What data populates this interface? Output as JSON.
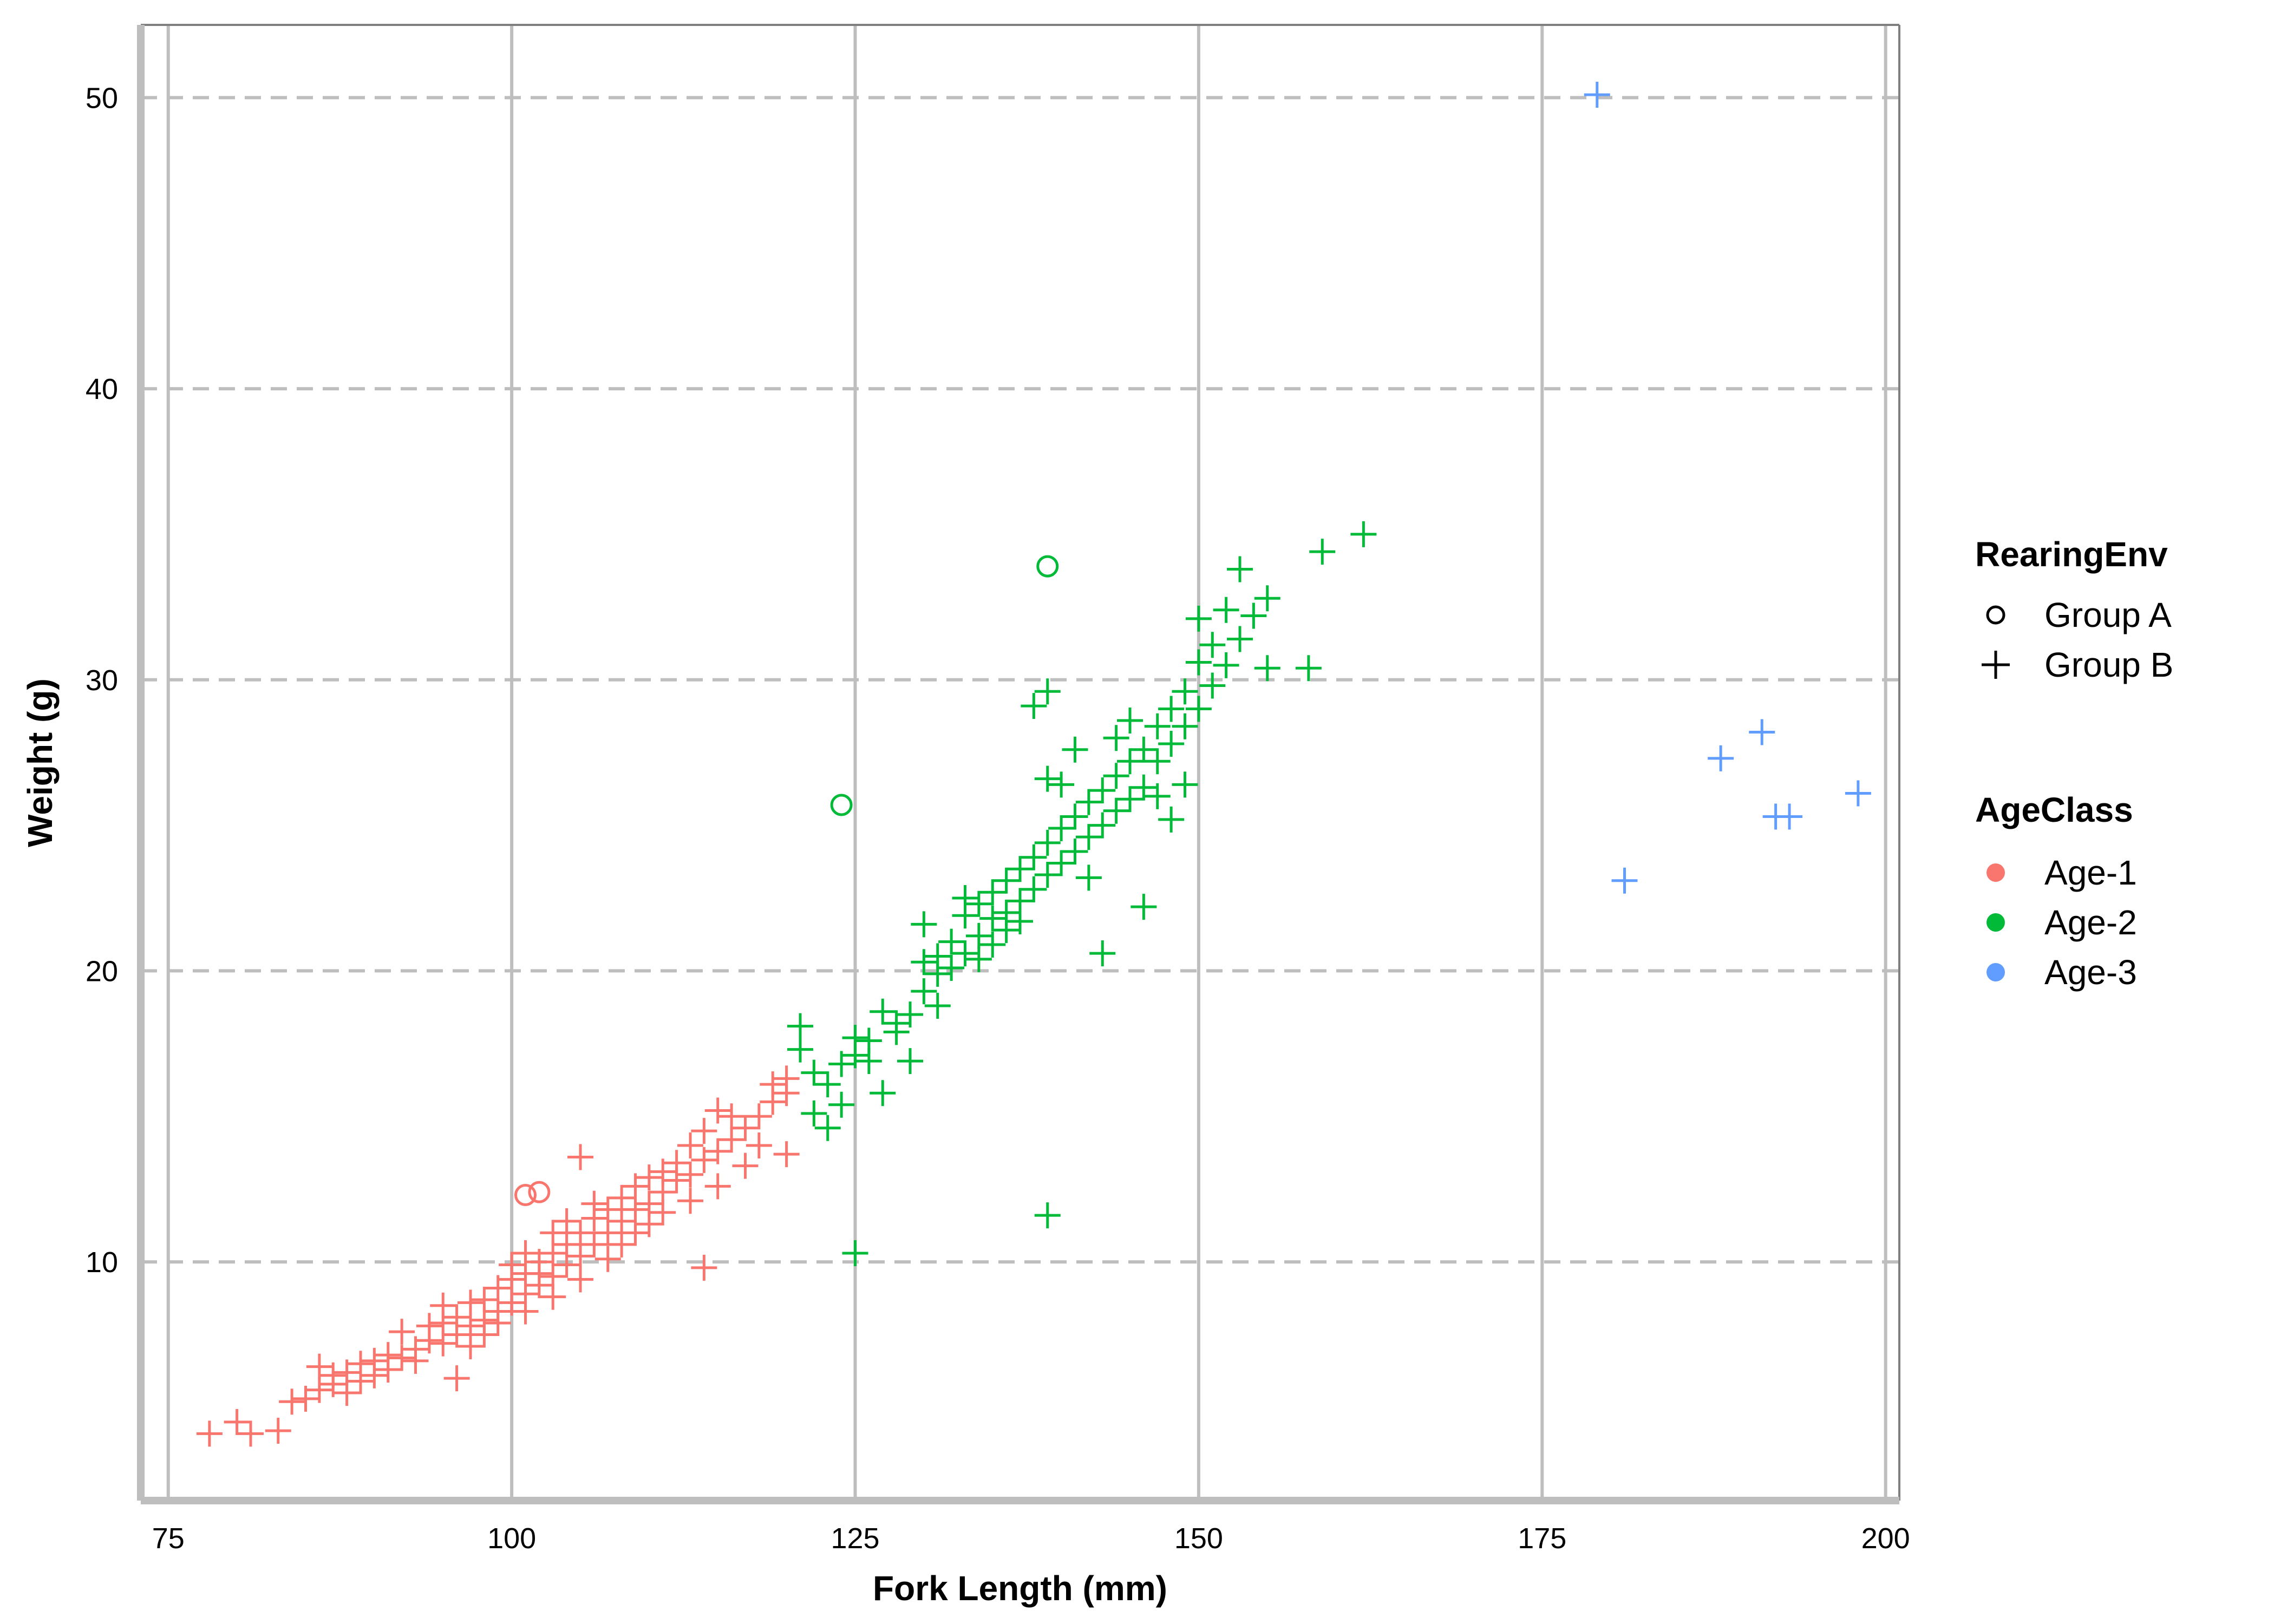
{
  "chart_data": {
    "type": "scatter",
    "title": "",
    "xlabel": "Fork Length (mm)",
    "ylabel": "Weight (g)",
    "xlim": [
      73,
      201
    ],
    "ylim": [
      1.8,
      52.5
    ],
    "x_ticks": [
      75,
      100,
      125,
      150,
      175,
      200
    ],
    "y_ticks": [
      10,
      20,
      30,
      40,
      50
    ],
    "grid": {
      "x_major": "solid",
      "y_major": "dashed"
    },
    "colors": {
      "Age-1": "#F8766D",
      "Age-2": "#00BA38",
      "Age-3": "#619CFF",
      "grid": "#bebebe",
      "border": "#7f7f7f"
    },
    "legends": [
      {
        "title": "RearingEnv",
        "position": "right",
        "entries": [
          {
            "label": "Group A",
            "shape": "circle"
          },
          {
            "label": "Group B",
            "shape": "plus"
          }
        ]
      },
      {
        "title": "AgeClass",
        "position": "right",
        "entries": [
          {
            "label": "Age-1",
            "color": "#F8766D"
          },
          {
            "label": "Age-2",
            "color": "#00BA38"
          },
          {
            "label": "Age-3",
            "color": "#619CFF"
          }
        ]
      }
    ],
    "series": [
      {
        "age": "Age-1",
        "rearing": "Group B",
        "points": [
          [
            78,
            4.1
          ],
          [
            80,
            4.5
          ],
          [
            81,
            4.1
          ],
          [
            83,
            4.2
          ],
          [
            84,
            5.2
          ],
          [
            85,
            5.3
          ],
          [
            86,
            5.6
          ],
          [
            86,
            6.4
          ],
          [
            87,
            5.8
          ],
          [
            87,
            6.1
          ],
          [
            88,
            5.5
          ],
          [
            88,
            6.2
          ],
          [
            89,
            6.5
          ],
          [
            89,
            5.9
          ],
          [
            90,
            6.6
          ],
          [
            90,
            6.1
          ],
          [
            91,
            6.8
          ],
          [
            91,
            6.3
          ],
          [
            92,
            6.7
          ],
          [
            92,
            7.6
          ],
          [
            93,
            7.0
          ],
          [
            93,
            6.6
          ],
          [
            94,
            7.3
          ],
          [
            94,
            7.8
          ],
          [
            95,
            7.2
          ],
          [
            95,
            7.9
          ],
          [
            95,
            8.5
          ],
          [
            96,
            7.5
          ],
          [
            96,
            6.0
          ],
          [
            96,
            8.1
          ],
          [
            97,
            7.8
          ],
          [
            97,
            8.6
          ],
          [
            97,
            7.1
          ],
          [
            98,
            8.0
          ],
          [
            98,
            8.7
          ],
          [
            98,
            7.5
          ],
          [
            99,
            8.3
          ],
          [
            99,
            9.1
          ],
          [
            99,
            7.9
          ],
          [
            100,
            8.6
          ],
          [
            100,
            9.4
          ],
          [
            100,
            9.9
          ],
          [
            101,
            8.9
          ],
          [
            101,
            9.6
          ],
          [
            101,
            10.3
          ],
          [
            101,
            8.3
          ],
          [
            102,
            9.2
          ],
          [
            102,
            10.0
          ],
          [
            102,
            9.6
          ],
          [
            103,
            9.5
          ],
          [
            103,
            10.3
          ],
          [
            103,
            11.0
          ],
          [
            103,
            8.8
          ],
          [
            104,
            9.9
          ],
          [
            104,
            10.6
          ],
          [
            104,
            11.4
          ],
          [
            105,
            10.2
          ],
          [
            105,
            11.0
          ],
          [
            105,
            9.4
          ],
          [
            105,
            13.6
          ],
          [
            106,
            10.6
          ],
          [
            106,
            11.5
          ],
          [
            106,
            12.0
          ],
          [
            107,
            11.0
          ],
          [
            107,
            11.8
          ],
          [
            107,
            10.1
          ],
          [
            108,
            11.4
          ],
          [
            108,
            12.2
          ],
          [
            108,
            10.6
          ],
          [
            109,
            11.8
          ],
          [
            109,
            12.6
          ],
          [
            109,
            11.0
          ],
          [
            110,
            12.0
          ],
          [
            110,
            12.9
          ],
          [
            110,
            11.3
          ],
          [
            111,
            12.4
          ],
          [
            111,
            13.1
          ],
          [
            111,
            11.7
          ],
          [
            112,
            12.8
          ],
          [
            112,
            13.4
          ],
          [
            113,
            13.0
          ],
          [
            113,
            14.0
          ],
          [
            113,
            12.1
          ],
          [
            114,
            13.5
          ],
          [
            114,
            14.5
          ],
          [
            114,
            9.8
          ],
          [
            115,
            13.8
          ],
          [
            115,
            15.2
          ],
          [
            115,
            12.6
          ],
          [
            116,
            14.2
          ],
          [
            116,
            15.0
          ],
          [
            117,
            14.6
          ],
          [
            117,
            13.3
          ],
          [
            118,
            15.0
          ],
          [
            118,
            14.0
          ],
          [
            119,
            15.5
          ],
          [
            119,
            16.1
          ],
          [
            120,
            15.8
          ],
          [
            120,
            13.7
          ],
          [
            120,
            16.3
          ]
        ]
      },
      {
        "age": "Age-1",
        "rearing": "Group A",
        "points": [
          [
            101,
            12.3
          ],
          [
            102,
            12.4
          ]
        ]
      },
      {
        "age": "Age-2",
        "rearing": "Group B",
        "points": [
          [
            121,
            18.1
          ],
          [
            121,
            17.3
          ],
          [
            122,
            16.5
          ],
          [
            122,
            15.1
          ],
          [
            123,
            14.6
          ],
          [
            123,
            16.1
          ],
          [
            124,
            15.4
          ],
          [
            124,
            16.8
          ],
          [
            125,
            17.1
          ],
          [
            125,
            17.7
          ],
          [
            125,
            10.3
          ],
          [
            126,
            16.9
          ],
          [
            126,
            17.6
          ],
          [
            127,
            15.8
          ],
          [
            127,
            18.6
          ],
          [
            128,
            18.2
          ],
          [
            128,
            17.9
          ],
          [
            129,
            18.5
          ],
          [
            129,
            16.9
          ],
          [
            130,
            19.3
          ],
          [
            130,
            21.6
          ],
          [
            130,
            20.3
          ],
          [
            131,
            19.9
          ],
          [
            131,
            20.5
          ],
          [
            131,
            18.8
          ],
          [
            132,
            20.1
          ],
          [
            132,
            21.0
          ],
          [
            133,
            20.6
          ],
          [
            133,
            21.9
          ],
          [
            133,
            22.5
          ],
          [
            134,
            21.2
          ],
          [
            134,
            22.3
          ],
          [
            134,
            20.4
          ],
          [
            135,
            21.8
          ],
          [
            135,
            22.7
          ],
          [
            135,
            20.9
          ],
          [
            136,
            22.0
          ],
          [
            136,
            23.1
          ],
          [
            136,
            21.4
          ],
          [
            137,
            22.4
          ],
          [
            137,
            23.5
          ],
          [
            137,
            21.7
          ],
          [
            138,
            22.8
          ],
          [
            138,
            23.9
          ],
          [
            138,
            29.1
          ],
          [
            139,
            23.3
          ],
          [
            139,
            24.4
          ],
          [
            139,
            29.6
          ],
          [
            139,
            11.6
          ],
          [
            139,
            26.6
          ],
          [
            140,
            23.7
          ],
          [
            140,
            24.9
          ],
          [
            140,
            26.4
          ],
          [
            141,
            24.1
          ],
          [
            141,
            25.3
          ],
          [
            141,
            27.6
          ],
          [
            142,
            24.6
          ],
          [
            142,
            25.8
          ],
          [
            142,
            23.2
          ],
          [
            143,
            25.0
          ],
          [
            143,
            26.2
          ],
          [
            143,
            20.6
          ],
          [
            144,
            25.5
          ],
          [
            144,
            26.7
          ],
          [
            144,
            28.0
          ],
          [
            145,
            25.9
          ],
          [
            145,
            27.2
          ],
          [
            145,
            28.6
          ],
          [
            146,
            26.3
          ],
          [
            146,
            27.6
          ],
          [
            146,
            22.2
          ],
          [
            147,
            27.2
          ],
          [
            147,
            28.4
          ],
          [
            147,
            26.0
          ],
          [
            148,
            27.8
          ],
          [
            148,
            29.0
          ],
          [
            148,
            25.2
          ],
          [
            149,
            28.4
          ],
          [
            149,
            29.6
          ],
          [
            149,
            26.4
          ],
          [
            150,
            29.0
          ],
          [
            150,
            30.6
          ],
          [
            150,
            32.1
          ],
          [
            151,
            29.8
          ],
          [
            151,
            31.2
          ],
          [
            152,
            30.5
          ],
          [
            152,
            32.4
          ],
          [
            153,
            31.4
          ],
          [
            153,
            33.8
          ],
          [
            154,
            32.2
          ],
          [
            155,
            32.8
          ],
          [
            155,
            30.4
          ],
          [
            158,
            30.4
          ],
          [
            159,
            34.4
          ],
          [
            162,
            35.0
          ]
        ]
      },
      {
        "age": "Age-2",
        "rearing": "Group A",
        "points": [
          [
            124,
            25.7
          ],
          [
            139,
            33.9
          ]
        ]
      },
      {
        "age": "Age-3",
        "rearing": "Group B",
        "points": [
          [
            179,
            50.1
          ],
          [
            181,
            23.1
          ],
          [
            188,
            27.3
          ],
          [
            191,
            28.2
          ],
          [
            192,
            25.3
          ],
          [
            193,
            25.3
          ],
          [
            198,
            26.1
          ]
        ]
      }
    ]
  }
}
